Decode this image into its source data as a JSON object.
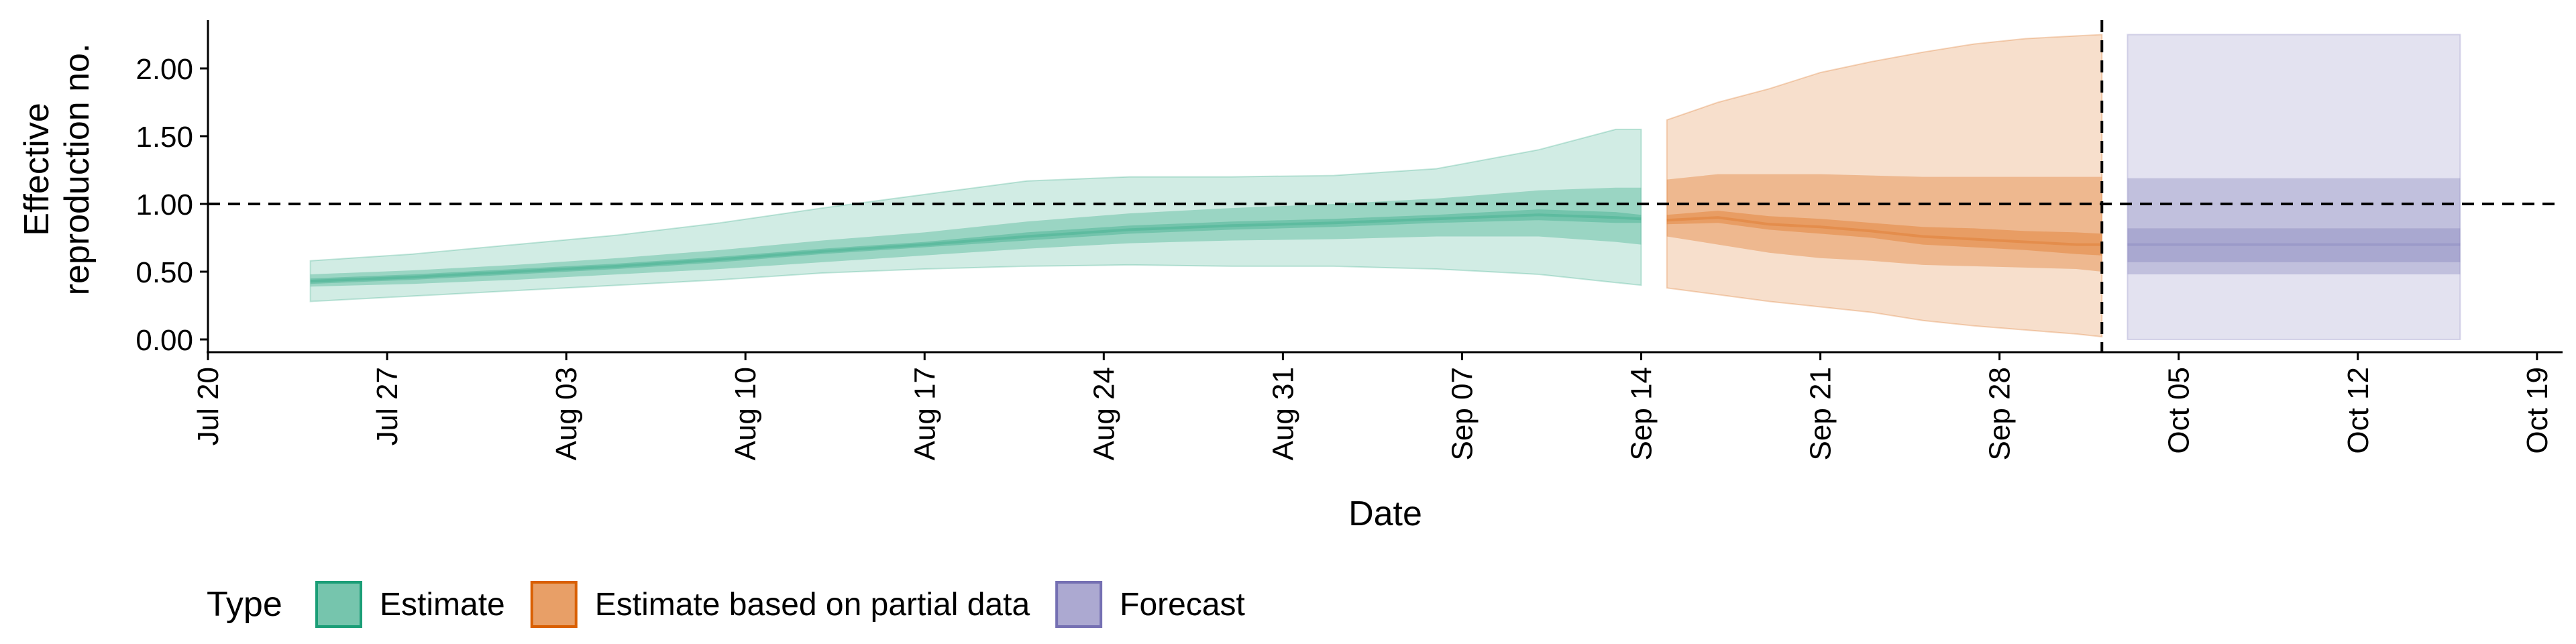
{
  "chart_data": {
    "type": "area",
    "title": "",
    "xlabel": "Date",
    "ylabel_lines": [
      "Effective",
      "reproduction no."
    ],
    "ylim": [
      0,
      2.3
    ],
    "y_ticks": [
      0,
      0.5,
      1.0,
      1.5,
      2.0
    ],
    "y_tick_labels": [
      "0.00",
      "0.50",
      "1.00",
      "1.50",
      "2.00"
    ],
    "x_range": [
      "2020-07-20",
      "2020-10-20"
    ],
    "x_ticks": [
      "2020-07-20",
      "2020-07-27",
      "2020-08-03",
      "2020-08-10",
      "2020-08-17",
      "2020-08-24",
      "2020-08-31",
      "2020-09-07",
      "2020-09-14",
      "2020-09-21",
      "2020-09-28",
      "2020-10-05",
      "2020-10-12",
      "2020-10-19"
    ],
    "x_tick_labels": [
      "Jul 20",
      "Jul 27",
      "Aug 03",
      "Aug 10",
      "Aug 17",
      "Aug 24",
      "Aug 31",
      "Sep 07",
      "Sep 14",
      "Sep 21",
      "Sep 28",
      "Oct 05",
      "Oct 12",
      "Oct 19"
    ],
    "reference_line_y": 1.0,
    "forecast_start_line": "2020-10-02",
    "legend": {
      "title": "Type",
      "position": "bottom",
      "items": [
        "Estimate",
        "Estimate based on partial data",
        "Forecast"
      ]
    },
    "series": [
      {
        "name": "Estimate",
        "color": "#1b9e77",
        "x": [
          "2020-07-24",
          "2020-07-28",
          "2020-08-01",
          "2020-08-05",
          "2020-08-09",
          "2020-08-13",
          "2020-08-17",
          "2020-08-21",
          "2020-08-25",
          "2020-08-29",
          "2020-09-02",
          "2020-09-06",
          "2020-09-10",
          "2020-09-13",
          "2020-09-14"
        ],
        "median": [
          0.43,
          0.46,
          0.5,
          0.54,
          0.59,
          0.65,
          0.7,
          0.76,
          0.81,
          0.84,
          0.86,
          0.89,
          0.92,
          0.9,
          0.89
        ],
        "lower_20": [
          0.41,
          0.44,
          0.48,
          0.52,
          0.57,
          0.63,
          0.68,
          0.73,
          0.78,
          0.81,
          0.83,
          0.86,
          0.88,
          0.86,
          0.86
        ],
        "upper_20": [
          0.45,
          0.48,
          0.52,
          0.56,
          0.61,
          0.67,
          0.72,
          0.79,
          0.84,
          0.87,
          0.89,
          0.92,
          0.96,
          0.94,
          0.92
        ],
        "lower_50": [
          0.39,
          0.41,
          0.44,
          0.48,
          0.52,
          0.57,
          0.62,
          0.67,
          0.71,
          0.73,
          0.74,
          0.76,
          0.76,
          0.72,
          0.7
        ],
        "upper_50": [
          0.48,
          0.51,
          0.55,
          0.6,
          0.66,
          0.73,
          0.79,
          0.87,
          0.93,
          0.97,
          1.0,
          1.04,
          1.1,
          1.12,
          1.12
        ],
        "lower_90": [
          0.28,
          0.32,
          0.36,
          0.4,
          0.44,
          0.49,
          0.52,
          0.54,
          0.55,
          0.54,
          0.54,
          0.52,
          0.48,
          0.42,
          0.4
        ],
        "upper_90": [
          0.58,
          0.63,
          0.7,
          0.77,
          0.86,
          0.97,
          1.07,
          1.17,
          1.2,
          1.2,
          1.21,
          1.26,
          1.4,
          1.55,
          1.55
        ]
      },
      {
        "name": "Estimate based on partial data",
        "color": "#d95f02",
        "x": [
          "2020-09-15",
          "2020-09-17",
          "2020-09-19",
          "2020-09-21",
          "2020-09-23",
          "2020-09-25",
          "2020-09-27",
          "2020-09-29",
          "2020-10-01",
          "2020-10-02"
        ],
        "median": [
          0.88,
          0.9,
          0.85,
          0.83,
          0.8,
          0.76,
          0.74,
          0.72,
          0.7,
          0.7
        ],
        "lower_20": [
          0.85,
          0.86,
          0.81,
          0.78,
          0.75,
          0.7,
          0.68,
          0.66,
          0.63,
          0.62
        ],
        "upper_20": [
          0.92,
          0.95,
          0.91,
          0.89,
          0.86,
          0.83,
          0.82,
          0.8,
          0.79,
          0.78
        ],
        "lower_50": [
          0.76,
          0.7,
          0.64,
          0.6,
          0.58,
          0.55,
          0.54,
          0.53,
          0.52,
          0.5
        ],
        "upper_50": [
          1.18,
          1.22,
          1.22,
          1.22,
          1.21,
          1.2,
          1.2,
          1.2,
          1.2,
          1.2
        ],
        "lower_90": [
          0.38,
          0.33,
          0.28,
          0.24,
          0.2,
          0.14,
          0.1,
          0.07,
          0.04,
          0.02
        ],
        "upper_90": [
          1.62,
          1.75,
          1.85,
          1.97,
          2.05,
          2.12,
          2.18,
          2.22,
          2.24,
          2.25
        ]
      },
      {
        "name": "Forecast",
        "color": "#7570b3",
        "x": [
          "2020-10-03",
          "2020-10-16"
        ],
        "median": [
          0.7,
          0.7
        ],
        "lower_20": [
          0.57,
          0.57
        ],
        "upper_20": [
          0.82,
          0.82
        ],
        "lower_50": [
          0.48,
          0.48
        ],
        "upper_50": [
          1.19,
          1.19
        ],
        "lower_90": [
          0.0,
          0.0
        ],
        "upper_90": [
          2.25,
          2.25
        ]
      }
    ]
  }
}
